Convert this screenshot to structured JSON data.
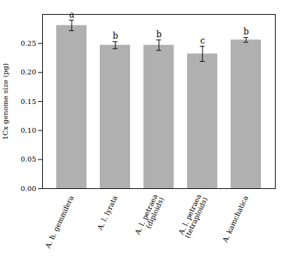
{
  "chart_data": {
    "type": "bar",
    "categories": [
      "A. h. gemmifera",
      "A. l. lyrata",
      "A. l. petraea\n(diploids)",
      "A. l. petraea\n(tetraploids)",
      "A. kamchatica"
    ],
    "values": [
      0.281,
      0.247,
      0.247,
      0.232,
      0.256
    ],
    "errors": [
      0.009,
      0.006,
      0.009,
      0.013,
      0.004
    ],
    "letters": [
      "a",
      "b",
      "b",
      "c",
      "b"
    ],
    "color": "#b0b0b0",
    "ylabel": "1Cx genome size (pg)",
    "ylim": [
      0,
      0.3
    ],
    "yticks": [
      {
        "value": 0,
        "label": "0.00"
      },
      0.05,
      {
        "value": 0.1,
        "label": "0.10"
      },
      0.15,
      {
        "value": 0.2,
        "label": "0.20"
      },
      0.25
    ],
    "grid": false
  }
}
